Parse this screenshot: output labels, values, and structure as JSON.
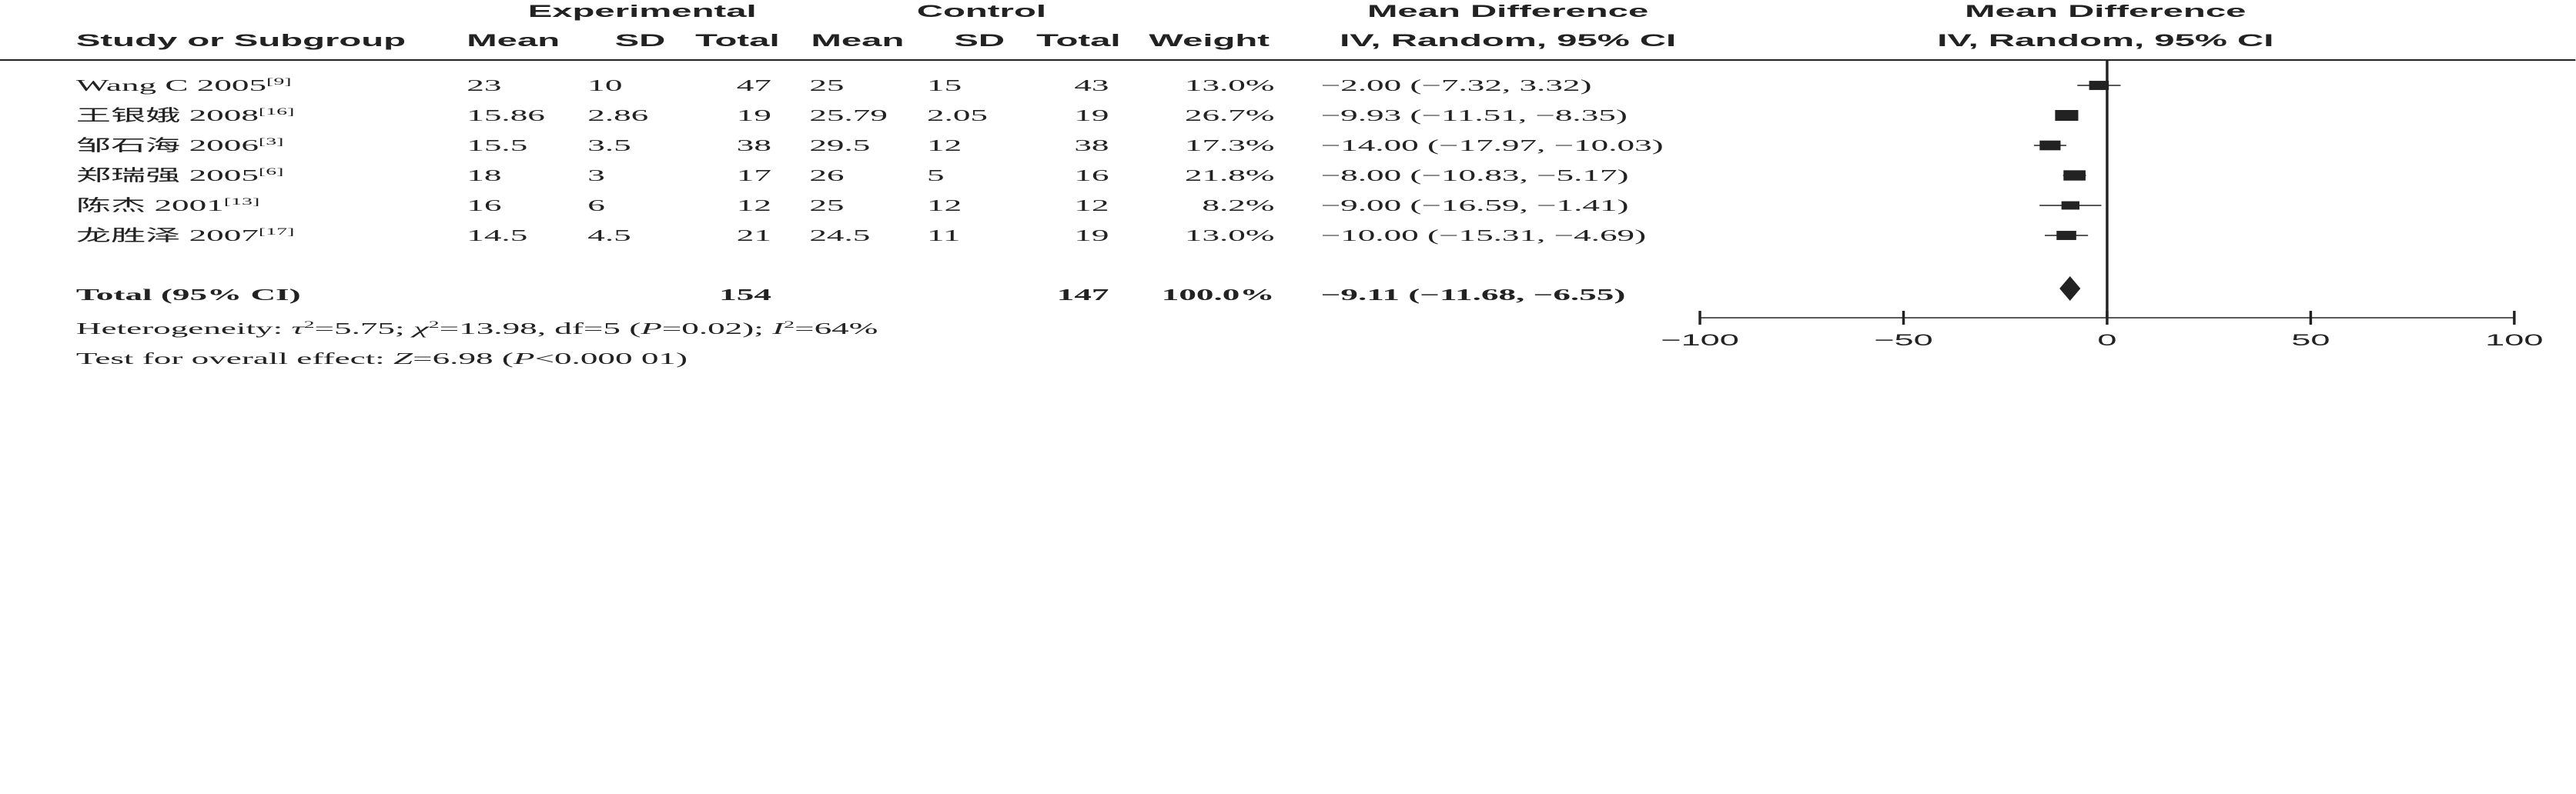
{
  "headers": {
    "group_experimental": "Experimental",
    "group_control": "Control",
    "md_table_top": "Mean Difference",
    "md_table_bottom": "IV, Random, 95% CI",
    "md_plot_top": "Mean Difference",
    "md_plot_bottom": "IV, Random, 95% CI",
    "study": "Study or Subgroup",
    "exp_mean": "Mean",
    "exp_sd": "SD",
    "exp_total": "Total",
    "ctl_mean": "Mean",
    "ctl_sd": "SD",
    "ctl_total": "Total",
    "weight": "Weight"
  },
  "studies": [
    {
      "name": "Wang C 2005",
      "ref": "[9]",
      "exp_mean": "23",
      "exp_sd": "10",
      "exp_total": "47",
      "ctl_mean": "25",
      "ctl_sd": "15",
      "ctl_total": "43",
      "weight": "13.0%",
      "ci_text": "−2.00 (−7.32, 3.32)"
    },
    {
      "name": "王银娥 2008",
      "ref": "[16]",
      "exp_mean": "15.86",
      "exp_sd": "2.86",
      "exp_total": "19",
      "ctl_mean": "25.79",
      "ctl_sd": "2.05",
      "ctl_total": "19",
      "weight": "26.7%",
      "ci_text": "−9.93 (−11.51, −8.35)"
    },
    {
      "name": "邹石海 2006",
      "ref": "[3]",
      "exp_mean": "15.5",
      "exp_sd": "3.5",
      "exp_total": "38",
      "ctl_mean": "29.5",
      "ctl_sd": "12",
      "ctl_total": "38",
      "weight": "17.3%",
      "ci_text": "−14.00 (−17.97, −10.03)"
    },
    {
      "name": "郑瑞强 2005",
      "ref": "[6]",
      "exp_mean": "18",
      "exp_sd": "3",
      "exp_total": "17",
      "ctl_mean": "26",
      "ctl_sd": "5",
      "ctl_total": "16",
      "weight": "21.8%",
      "ci_text": "−8.00 (−10.83, −5.17)"
    },
    {
      "name": "陈杰 2001",
      "ref": "[13]",
      "exp_mean": "16",
      "exp_sd": "6",
      "exp_total": "12",
      "ctl_mean": "25",
      "ctl_sd": "12",
      "ctl_total": "12",
      "weight": "8.2%",
      "ci_text": "−9.00 (−16.59, −1.41)"
    },
    {
      "name": "龙胜泽 2007",
      "ref": "[17]",
      "exp_mean": "14.5",
      "exp_sd": "4.5",
      "exp_total": "21",
      "ctl_mean": "24.5",
      "ctl_sd": "11",
      "ctl_total": "19",
      "weight": "13.0%",
      "ci_text": "−10.00 (−15.31, −4.69)"
    }
  ],
  "total": {
    "label": "Total (95% CI)",
    "exp_total": "154",
    "ctl_total": "147",
    "weight": "100.0%",
    "ci_text": "−9.11 (−11.68, −6.55)"
  },
  "footer": {
    "heterogeneity": "Heterogeneity: τ²=5.75; χ²=13.98, df=5 (P=0.02); I²=64%",
    "overall": "Test for overall effect: Z=6.98 (P<0.000 01)"
  },
  "chart_data": {
    "type": "forest",
    "xlim": [
      -100,
      100
    ],
    "xticks": [
      -100,
      -50,
      0,
      50,
      100
    ],
    "reference_line": 0,
    "points": [
      {
        "md": -2.0,
        "lo": -7.32,
        "hi": 3.32,
        "weight": 13.0
      },
      {
        "md": -9.93,
        "lo": -11.51,
        "hi": -8.35,
        "weight": 26.7
      },
      {
        "md": -14.0,
        "lo": -17.97,
        "hi": -10.03,
        "weight": 17.3
      },
      {
        "md": -8.0,
        "lo": -10.83,
        "hi": -5.17,
        "weight": 21.8
      },
      {
        "md": -9.0,
        "lo": -16.59,
        "hi": -1.41,
        "weight": 8.2
      },
      {
        "md": -10.0,
        "lo": -15.31,
        "hi": -4.69,
        "weight": 13.0
      }
    ],
    "summary": {
      "md": -9.11,
      "lo": -11.68,
      "hi": -6.55
    }
  }
}
